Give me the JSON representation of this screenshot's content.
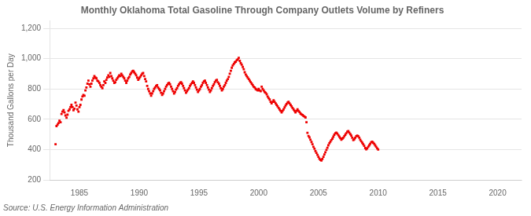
{
  "chart_data": {
    "type": "scatter",
    "title": "Monthly Oklahoma Total Gasoline Through Company Outlets Volume by Refiners",
    "ylabel": "Thousand Gallons per Day",
    "source": "Source: U.S. Energy Information Administration",
    "color": "#EE0000",
    "marker": "square",
    "grid": "y",
    "xlim": [
      1982.5,
      2022.0
    ],
    "ylim": [
      200,
      1250
    ],
    "xticks": [
      1985,
      1990,
      1995,
      2000,
      2005,
      2010,
      2015,
      2020
    ],
    "yticks": [
      200,
      400,
      600,
      800,
      {
        "value": 1000,
        "label": "1,000"
      },
      {
        "value": 1200,
        "label": "1,200"
      }
    ],
    "x": [
      1983.0,
      1983.08,
      1983.17,
      1983.25,
      1983.33,
      1983.42,
      1983.5,
      1983.58,
      1983.67,
      1983.75,
      1983.83,
      1983.92,
      1984.0,
      1984.08,
      1984.17,
      1984.25,
      1984.33,
      1984.42,
      1984.5,
      1984.58,
      1984.67,
      1984.75,
      1984.83,
      1984.92,
      1985.0,
      1985.08,
      1985.17,
      1985.25,
      1985.33,
      1985.42,
      1985.5,
      1985.58,
      1985.67,
      1985.75,
      1985.83,
      1985.92,
      1986.0,
      1986.08,
      1986.17,
      1986.25,
      1986.33,
      1986.42,
      1986.5,
      1986.58,
      1986.67,
      1986.75,
      1986.83,
      1986.92,
      1987.0,
      1987.08,
      1987.17,
      1987.25,
      1987.33,
      1987.42,
      1987.5,
      1987.58,
      1987.67,
      1987.75,
      1987.83,
      1987.92,
      1988.0,
      1988.08,
      1988.17,
      1988.25,
      1988.33,
      1988.42,
      1988.5,
      1988.58,
      1988.67,
      1988.75,
      1988.83,
      1988.92,
      1989.0,
      1989.08,
      1989.17,
      1989.25,
      1989.33,
      1989.42,
      1989.5,
      1989.58,
      1989.67,
      1989.75,
      1989.83,
      1989.92,
      1990.0,
      1990.08,
      1990.17,
      1990.25,
      1990.33,
      1990.42,
      1990.5,
      1990.58,
      1990.67,
      1990.75,
      1990.83,
      1990.92,
      1991.0,
      1991.08,
      1991.17,
      1991.25,
      1991.33,
      1991.42,
      1991.5,
      1991.58,
      1991.67,
      1991.75,
      1991.83,
      1991.92,
      1992.0,
      1992.08,
      1992.17,
      1992.25,
      1992.33,
      1992.42,
      1992.5,
      1992.58,
      1992.67,
      1992.75,
      1992.83,
      1992.92,
      1993.0,
      1993.08,
      1993.17,
      1993.25,
      1993.33,
      1993.42,
      1993.5,
      1993.58,
      1993.67,
      1993.75,
      1993.83,
      1993.92,
      1994.0,
      1994.08,
      1994.17,
      1994.25,
      1994.33,
      1994.42,
      1994.5,
      1994.58,
      1994.67,
      1994.75,
      1994.83,
      1994.92,
      1995.0,
      1995.08,
      1995.17,
      1995.25,
      1995.33,
      1995.42,
      1995.5,
      1995.58,
      1995.67,
      1995.75,
      1995.83,
      1995.92,
      1996.0,
      1996.08,
      1996.17,
      1996.25,
      1996.33,
      1996.42,
      1996.5,
      1996.58,
      1996.67,
      1996.75,
      1996.83,
      1996.92,
      1997.0,
      1997.08,
      1997.17,
      1997.25,
      1997.33,
      1997.42,
      1997.5,
      1997.58,
      1997.67,
      1997.75,
      1997.83,
      1997.92,
      1998.0,
      1998.08,
      1998.17,
      1998.25,
      1998.33,
      1998.42,
      1998.5,
      1998.58,
      1998.67,
      1998.75,
      1998.83,
      1998.92,
      1999.0,
      1999.08,
      1999.17,
      1999.25,
      1999.33,
      1999.42,
      1999.5,
      1999.58,
      1999.67,
      1999.75,
      1999.83,
      1999.92,
      2000.0,
      2000.08,
      2000.17,
      2000.25,
      2000.33,
      2000.42,
      2000.5,
      2000.58,
      2000.67,
      2000.75,
      2000.83,
      2000.92,
      2001.0,
      2001.08,
      2001.17,
      2001.25,
      2001.33,
      2001.42,
      2001.5,
      2001.58,
      2001.67,
      2001.75,
      2001.83,
      2001.92,
      2002.0,
      2002.08,
      2002.17,
      2002.25,
      2002.33,
      2002.42,
      2002.5,
      2002.58,
      2002.67,
      2002.75,
      2002.83,
      2002.92,
      2003.0,
      2003.08,
      2003.17,
      2003.25,
      2003.33,
      2003.42,
      2003.5,
      2003.58,
      2003.67,
      2003.75,
      2003.83,
      2003.92,
      2004.0,
      2004.08,
      2004.17,
      2004.25,
      2004.33,
      2004.42,
      2004.5,
      2004.58,
      2004.67,
      2004.75,
      2004.83,
      2004.92,
      2005.0,
      2005.08,
      2005.17,
      2005.25,
      2005.33,
      2005.42,
      2005.5,
      2005.58,
      2005.67,
      2005.75,
      2005.83,
      2005.92,
      2006.0,
      2006.08,
      2006.17,
      2006.25,
      2006.33,
      2006.42,
      2006.5,
      2006.58,
      2006.67,
      2006.75,
      2006.83,
      2006.92,
      2007.0,
      2007.08,
      2007.17,
      2007.25,
      2007.33,
      2007.42,
      2007.5,
      2007.58,
      2007.67,
      2007.75,
      2007.83,
      2007.92,
      2008.0,
      2008.08,
      2008.17,
      2008.25,
      2008.33,
      2008.42,
      2008.5,
      2008.58,
      2008.67,
      2008.75,
      2008.83,
      2008.92,
      2009.0,
      2009.08,
      2009.17,
      2009.25,
      2009.33,
      2009.42,
      2009.5,
      2009.58,
      2009.67,
      2009.75,
      2009.83,
      2009.92,
      2010.0
    ],
    "values": [
      435,
      555,
      565,
      575,
      590,
      580,
      635,
      650,
      660,
      645,
      625,
      610,
      630,
      655,
      665,
      680,
      695,
      680,
      660,
      670,
      710,
      690,
      665,
      650,
      680,
      695,
      730,
      750,
      760,
      755,
      790,
      810,
      835,
      855,
      830,
      815,
      835,
      855,
      870,
      885,
      875,
      870,
      855,
      850,
      840,
      825,
      815,
      805,
      825,
      850,
      840,
      860,
      875,
      890,
      880,
      905,
      885,
      870,
      855,
      840,
      845,
      860,
      870,
      880,
      890,
      885,
      900,
      890,
      880,
      870,
      855,
      840,
      855,
      870,
      880,
      895,
      905,
      915,
      920,
      910,
      900,
      890,
      875,
      860,
      870,
      880,
      890,
      900,
      905,
      885,
      865,
      850,
      820,
      800,
      785,
      770,
      755,
      770,
      785,
      800,
      810,
      820,
      825,
      810,
      800,
      790,
      775,
      760,
      770,
      785,
      800,
      815,
      825,
      835,
      840,
      830,
      815,
      800,
      785,
      770,
      780,
      795,
      805,
      820,
      830,
      840,
      845,
      835,
      820,
      805,
      790,
      775,
      785,
      795,
      805,
      820,
      830,
      840,
      850,
      840,
      825,
      810,
      795,
      780,
      790,
      800,
      815,
      825,
      840,
      850,
      855,
      840,
      825,
      810,
      795,
      780,
      790,
      805,
      820,
      830,
      845,
      855,
      860,
      845,
      835,
      820,
      805,
      790,
      800,
      815,
      825,
      840,
      855,
      865,
      880,
      900,
      920,
      940,
      955,
      965,
      975,
      980,
      990,
      995,
      1005,
      985,
      970,
      960,
      945,
      930,
      910,
      895,
      885,
      875,
      865,
      855,
      845,
      835,
      825,
      815,
      810,
      800,
      795,
      790,
      800,
      790,
      785,
      815,
      800,
      790,
      780,
      775,
      765,
      750,
      740,
      730,
      715,
      705,
      715,
      725,
      715,
      705,
      695,
      685,
      675,
      665,
      655,
      645,
      655,
      665,
      678,
      690,
      700,
      710,
      715,
      705,
      695,
      685,
      675,
      665,
      655,
      645,
      655,
      665,
      655,
      648,
      638,
      632,
      628,
      622,
      618,
      612,
      580,
      510,
      490,
      480,
      465,
      450,
      435,
      418,
      405,
      390,
      378,
      365,
      352,
      340,
      332,
      328,
      338,
      352,
      368,
      382,
      398,
      412,
      428,
      442,
      452,
      462,
      472,
      485,
      498,
      508,
      512,
      505,
      495,
      485,
      475,
      465,
      472,
      478,
      488,
      498,
      508,
      518,
      522,
      512,
      502,
      492,
      478,
      462,
      468,
      478,
      488,
      492,
      488,
      478,
      465,
      455,
      445,
      435,
      425,
      410,
      402,
      408,
      418,
      428,
      438,
      448,
      452,
      445,
      438,
      428,
      418,
      408,
      400
    ]
  }
}
